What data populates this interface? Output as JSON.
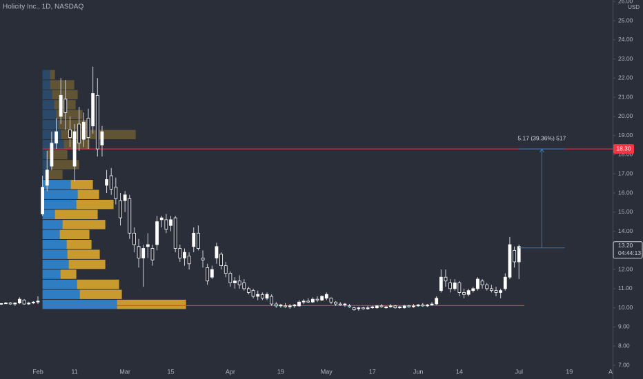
{
  "chart_data": {
    "type": "candlestick",
    "title": "Holicity Inc., 1D, NASDAQ",
    "currency": "USD",
    "open": [
      10.2,
      10.22,
      10.25,
      10.2,
      10.25,
      10.4,
      10.2,
      10.25,
      10.3,
      14.9,
      16.4,
      17.4,
      18.6,
      20.0,
      20.9,
      19.3,
      17.4,
      19.6,
      18.8,
      19.9,
      19.5,
      21.1,
      18.5,
      16.4,
      16.9,
      16.3,
      15.6,
      15.6,
      15.7,
      13.9,
      13.2,
      12.6,
      13.2,
      13.1,
      13.3,
      14.6,
      14.6,
      14.3,
      14.7,
      13.1,
      12.6,
      12.7,
      13.2,
      13.9,
      12.6,
      12.1,
      11.6,
      12.6,
      12.8,
      12.2,
      11.8,
      11.3,
      11.4,
      11.3,
      11.0,
      10.9,
      10.6,
      10.7,
      10.5,
      10.6,
      10.2,
      10.1,
      10.1,
      10.05,
      10.1,
      10.1,
      10.3,
      10.35,
      10.3,
      10.45,
      10.4,
      10.5,
      10.5,
      10.3,
      10.2,
      10.15,
      10.1,
      10.0,
      9.95,
      10.0,
      9.95,
      10.0,
      10.0,
      10.1,
      10.0,
      10.05,
      10.1,
      10.0,
      10.0,
      10.1,
      10.05,
      10.1,
      10.15,
      10.1,
      10.15,
      10.2,
      10.9,
      11.6,
      11.3,
      11.0,
      11.3,
      10.8,
      10.7,
      10.9,
      11.0,
      11.4,
      11.2,
      11.0,
      10.9,
      10.8,
      11.0,
      11.6,
      13.0,
      12.4
    ],
    "high": [
      10.25,
      10.3,
      10.3,
      10.28,
      10.55,
      10.45,
      10.3,
      10.35,
      10.6,
      16.9,
      18.2,
      19.2,
      19.9,
      22.0,
      21.9,
      20.0,
      19.6,
      20.5,
      20.2,
      20.4,
      22.6,
      22.0,
      19.5,
      17.2,
      17.3,
      16.8,
      16.0,
      16.1,
      15.9,
      14.2,
      13.6,
      13.3,
      13.9,
      13.3,
      14.8,
      14.8,
      14.9,
      14.8,
      14.8,
      13.3,
      13.1,
      12.9,
      14.2,
      14.3,
      13.0,
      12.3,
      12.2,
      13.4,
      12.9,
      12.4,
      11.9,
      11.6,
      11.7,
      11.5,
      11.1,
      11.0,
      10.9,
      10.8,
      10.8,
      10.7,
      10.3,
      10.2,
      10.25,
      10.2,
      10.2,
      10.4,
      10.45,
      10.5,
      10.55,
      10.6,
      10.65,
      10.8,
      10.55,
      10.35,
      10.3,
      10.25,
      10.2,
      10.05,
      10.05,
      10.05,
      10.1,
      10.1,
      10.15,
      10.2,
      10.1,
      10.2,
      10.15,
      10.1,
      10.15,
      10.15,
      10.2,
      10.2,
      10.25,
      10.2,
      10.3,
      10.6,
      12.0,
      12.0,
      11.5,
      11.5,
      11.4,
      11.0,
      11.0,
      11.1,
      11.6,
      11.5,
      11.3,
      11.2,
      11.1,
      11.0,
      11.8,
      13.7,
      13.2,
      13.3
    ],
    "low": [
      10.15,
      10.2,
      10.15,
      10.1,
      10.2,
      10.15,
      10.15,
      10.2,
      10.2,
      14.8,
      16.1,
      17.2,
      18.3,
      19.6,
      19.3,
      18.4,
      16.6,
      18.2,
      18.4,
      18.3,
      19.1,
      17.9,
      17.9,
      16.0,
      15.9,
      15.4,
      14.3,
      15.0,
      13.6,
      12.9,
      12.1,
      11.1,
      12.6,
      12.2,
      13.0,
      14.2,
      13.9,
      14.0,
      12.9,
      12.4,
      12.2,
      12.0,
      12.9,
      13.0,
      12.1,
      11.2,
      11.5,
      12.3,
      12.0,
      11.6,
      11.1,
      11.0,
      11.0,
      10.9,
      10.7,
      10.5,
      10.4,
      10.4,
      10.4,
      10.1,
      10.0,
      10.0,
      10.0,
      9.95,
      10.0,
      10.05,
      10.2,
      10.25,
      10.25,
      10.3,
      10.35,
      10.4,
      10.2,
      10.1,
      10.1,
      10.05,
      10.0,
      9.85,
      9.85,
      9.9,
      9.9,
      9.95,
      9.95,
      10.0,
      9.95,
      10.0,
      9.95,
      9.95,
      9.95,
      10.0,
      10.0,
      10.05,
      10.05,
      10.05,
      10.1,
      10.15,
      10.8,
      11.1,
      10.8,
      10.9,
      10.6,
      10.5,
      10.6,
      10.8,
      10.9,
      11.0,
      10.9,
      10.8,
      10.6,
      10.5,
      10.9,
      11.5,
      12.1,
      11.5
    ],
    "close": [
      10.22,
      10.25,
      10.2,
      10.25,
      10.45,
      10.2,
      10.25,
      10.3,
      10.35,
      16.3,
      17.2,
      18.6,
      19.2,
      21.1,
      20.2,
      18.9,
      19.2,
      18.6,
      19.7,
      18.9,
      21.2,
      18.3,
      19.2,
      16.7,
      16.2,
      15.7,
      14.7,
      15.9,
      13.9,
      13.3,
      12.6,
      13.1,
      13.3,
      12.5,
      14.5,
      14.7,
      14.1,
      14.6,
      13.1,
      12.6,
      12.9,
      12.3,
      13.9,
      13.1,
      12.5,
      11.4,
      12.0,
      13.2,
      12.2,
      11.8,
      11.3,
      11.4,
      11.2,
      11.0,
      10.8,
      10.6,
      10.7,
      10.5,
      10.7,
      10.2,
      10.1,
      10.15,
      10.05,
      10.1,
      10.15,
      10.3,
      10.35,
      10.3,
      10.45,
      10.4,
      10.6,
      10.7,
      10.3,
      10.2,
      10.15,
      10.2,
      10.05,
      9.9,
      10.0,
      9.95,
      10.0,
      10.05,
      10.1,
      10.05,
      10.05,
      10.1,
      10.0,
      10.05,
      10.1,
      10.05,
      10.1,
      10.15,
      10.1,
      10.15,
      10.2,
      10.5,
      11.6,
      11.4,
      11.0,
      11.3,
      10.8,
      10.7,
      10.9,
      11.0,
      11.5,
      11.2,
      11.0,
      10.9,
      10.8,
      10.9,
      11.6,
      13.3,
      12.4,
      13.2
    ],
    "up_color": "#ffffff",
    "down_color": "#1e222d",
    "xlim": [
      -0.28,
      133.45
    ],
    "xticks": [
      {
        "value": 8,
        "label": "Feb"
      },
      {
        "value": 16,
        "label": "11"
      },
      {
        "value": 27,
        "label": "Mar"
      },
      {
        "value": 37,
        "label": "15"
      },
      {
        "value": 50,
        "label": "Apr"
      },
      {
        "value": 61,
        "label": "19"
      },
      {
        "value": 71,
        "label": "May"
      },
      {
        "value": 81,
        "label": "17"
      },
      {
        "value": 91,
        "label": "Jun"
      },
      {
        "value": 100,
        "label": "14"
      },
      {
        "value": 113,
        "label": "Jul"
      },
      {
        "value": 124,
        "label": "19"
      },
      {
        "value": 133,
        "label": "A"
      }
    ],
    "ylim": [
      6.28,
      26.08
    ],
    "yticks": [
      {
        "value": 7,
        "label": "7.00"
      },
      {
        "value": 8,
        "label": "8.00"
      },
      {
        "value": 9,
        "label": "9.00"
      },
      {
        "value": 10,
        "label": "10.00"
      },
      {
        "value": 11,
        "label": "11.00"
      },
      {
        "value": 12,
        "label": "12.00"
      },
      {
        "value": 13,
        "label": "13.00"
      },
      {
        "value": 14,
        "label": "14.00"
      },
      {
        "value": 15,
        "label": "15.00"
      },
      {
        "value": 16,
        "label": "16.00"
      },
      {
        "value": 17,
        "label": "17.00"
      },
      {
        "value": 18,
        "label": "18.00"
      },
      {
        "value": 19,
        "label": "19.00"
      },
      {
        "value": 20,
        "label": "20.00"
      },
      {
        "value": 21,
        "label": "21.00"
      },
      {
        "value": 22,
        "label": "22.00"
      },
      {
        "value": 23,
        "label": "23.00"
      },
      {
        "value": 24,
        "label": "24.00"
      },
      {
        "value": 25,
        "label": "25.00"
      },
      {
        "value": 26,
        "label": "26.00"
      }
    ],
    "profile": {
      "bins": [
        9.92,
        10.44,
        10.96,
        11.49,
        12.01,
        12.53,
        13.05,
        13.57,
        14.09,
        14.61,
        15.14,
        15.66,
        16.18,
        16.7,
        17.22,
        17.74,
        18.26,
        18.79,
        19.31,
        19.83,
        20.35,
        20.87,
        21.39,
        21.91,
        22.44
      ],
      "up": [
        108,
        54,
        50,
        26,
        38,
        36,
        35,
        25,
        29,
        18,
        49,
        51,
        41,
        9,
        12,
        7,
        31,
        27,
        23,
        20,
        17,
        14,
        11,
        11
      ],
      "down": [
        100,
        61,
        61,
        23,
        53,
        47,
        36,
        43,
        62,
        62,
        54,
        31,
        32,
        20,
        41,
        29,
        37,
        108,
        45,
        38,
        31,
        37,
        35,
        7
      ],
      "up_color": "#2f7ec4",
      "down_color": "#c99b2e",
      "value_area": [
        9.92,
        16.7
      ],
      "start": 9
    },
    "hlines": [
      {
        "value": 18.3,
        "label": "18.30",
        "color": "#f23645",
        "x_range": [
          9,
          133.45
        ]
      },
      {
        "value": 10.12,
        "color": "#f23645",
        "x_range": [
          9,
          114.2
        ]
      }
    ],
    "measure": {
      "from": 13.13,
      "to": 18.3,
      "label": "5.17 (39.36%) 517",
      "x_range": [
        113,
        123
      ],
      "color": "#2f7ec4"
    },
    "last_price": {
      "value": 13.2,
      "label": "13.20",
      "countdown": "04:44:13"
    }
  }
}
